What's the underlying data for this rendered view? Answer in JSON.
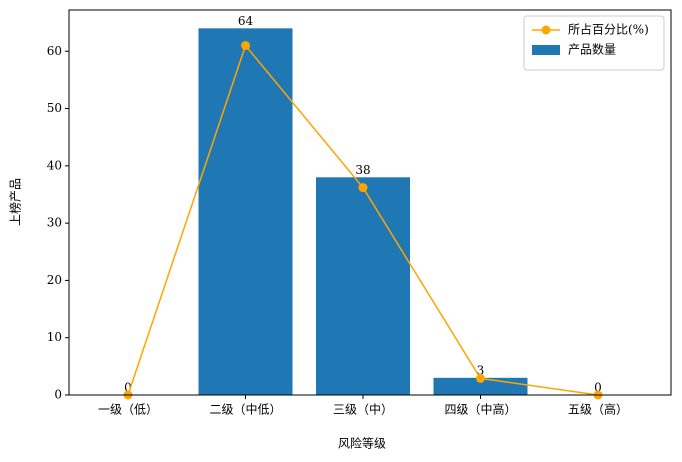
{
  "chart_data": {
    "type": "bar",
    "xlabel": "风险等级",
    "ylabel": "上榜产品",
    "categories": [
      "一级（低）",
      "二级（中低）",
      "三级（中）",
      "四级（中高）",
      "五级（高）"
    ],
    "series": [
      {
        "name": "所占百分比(%)",
        "type": "line",
        "color": "#ffa500",
        "values": [
          0,
          61,
          36.2,
          2.9,
          0
        ]
      },
      {
        "name": "产品数量",
        "type": "bar",
        "color": "#1f77b4",
        "values": [
          0,
          64,
          38,
          3,
          0
        ]
      }
    ],
    "ylim": [
      0,
      67.2
    ],
    "yticks": [
      0,
      10,
      20,
      30,
      40,
      50,
      60
    ],
    "legend": "upper right"
  }
}
